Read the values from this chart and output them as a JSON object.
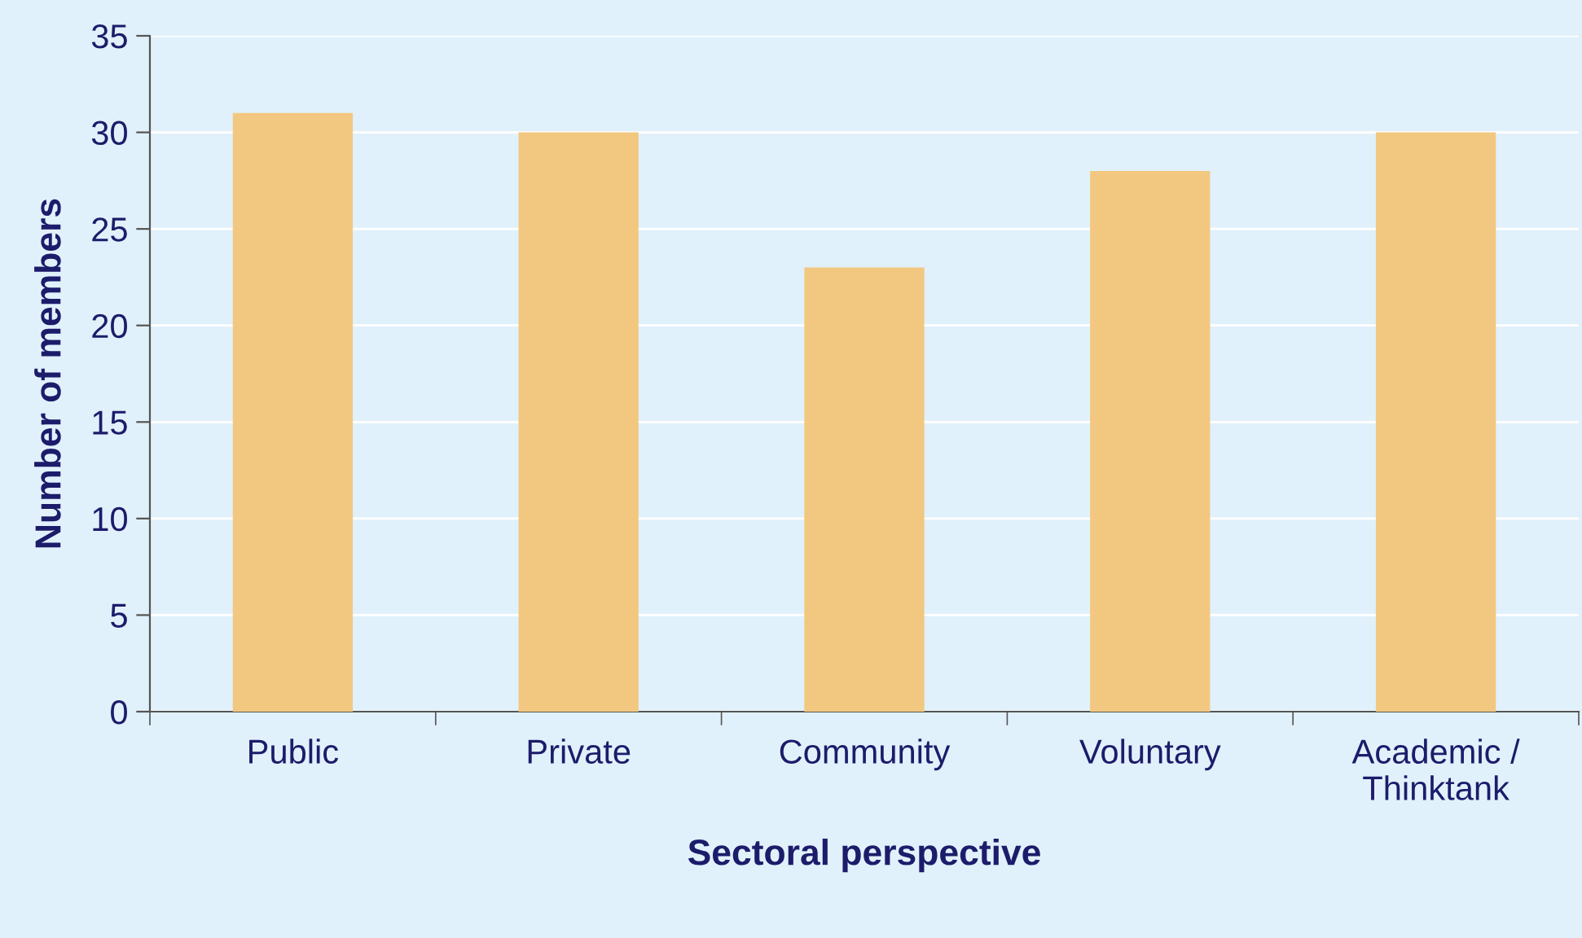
{
  "chart_data": {
    "type": "bar",
    "xlabel": "Sectoral perspective",
    "ylabel": "Number of members",
    "categories": [
      "Public",
      "Private",
      "Community",
      "Voluntary",
      "Academic /\nThinktank"
    ],
    "values": [
      31,
      30,
      23,
      28,
      30
    ],
    "color": "#f2c880",
    "ylim": [
      0,
      35
    ],
    "yticks": [
      0,
      5,
      10,
      15,
      20,
      25,
      30,
      35
    ],
    "grid": "y"
  }
}
